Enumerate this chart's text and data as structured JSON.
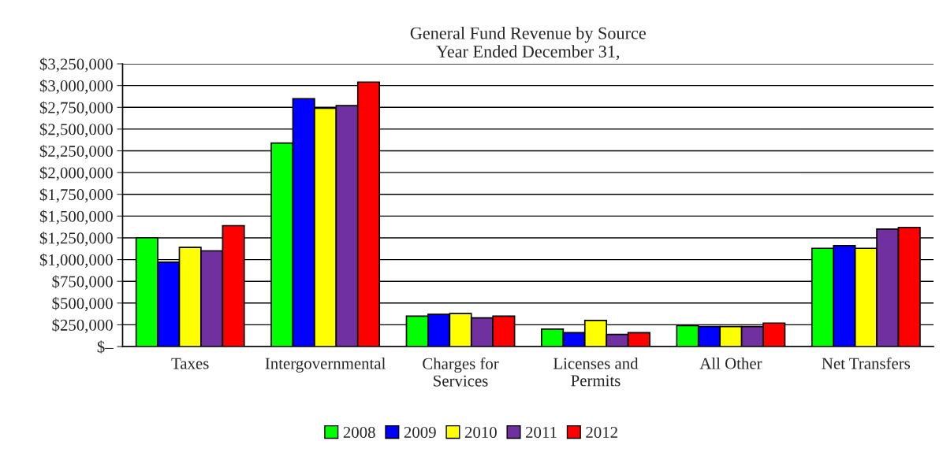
{
  "chart_data": {
    "type": "bar",
    "title": "General Fund Revenue by Source\nYear Ended December 31,",
    "categories": [
      "Taxes",
      "Intergovernmental",
      "Charges for\nServices",
      "Licenses and\nPermits",
      "All Other",
      "Net Transfers"
    ],
    "series": [
      {
        "name": "2008",
        "color": "#00ff00",
        "values": [
          1250000,
          2340000,
          350000,
          200000,
          240000,
          1130000
        ]
      },
      {
        "name": "2009",
        "color": "#0000ff",
        "values": [
          970000,
          2850000,
          370000,
          160000,
          230000,
          1160000
        ]
      },
      {
        "name": "2010",
        "color": "#ffff00",
        "values": [
          1140000,
          2740000,
          380000,
          300000,
          230000,
          1130000
        ]
      },
      {
        "name": "2011",
        "color": "#7030a0",
        "values": [
          1100000,
          2770000,
          330000,
          140000,
          230000,
          1350000
        ]
      },
      {
        "name": "2012",
        "color": "#ff0000",
        "values": [
          1390000,
          3040000,
          350000,
          160000,
          270000,
          1370000
        ]
      }
    ],
    "ylim": [
      0,
      3250000
    ],
    "yticks": [
      {
        "value": 0,
        "label": "$–"
      },
      {
        "value": 250000,
        "label": "$250,000"
      },
      {
        "value": 500000,
        "label": "$500,000"
      },
      {
        "value": 750000,
        "label": "$750,000"
      },
      {
        "value": 1000000,
        "label": "$1,000,000"
      },
      {
        "value": 1250000,
        "label": "$1,250,000"
      },
      {
        "value": 1500000,
        "label": "$1,500,000"
      },
      {
        "value": 1750000,
        "label": "$1,750,000"
      },
      {
        "value": 2000000,
        "label": "$2,000,000"
      },
      {
        "value": 2250000,
        "label": "$2,250,000"
      },
      {
        "value": 2500000,
        "label": "$2,500,000"
      },
      {
        "value": 2750000,
        "label": "$2,750,000"
      },
      {
        "value": 3000000,
        "label": "$3,000,000"
      },
      {
        "value": 3250000,
        "label": "$3,250,000"
      }
    ],
    "grid": "y",
    "legend": "bottom"
  }
}
